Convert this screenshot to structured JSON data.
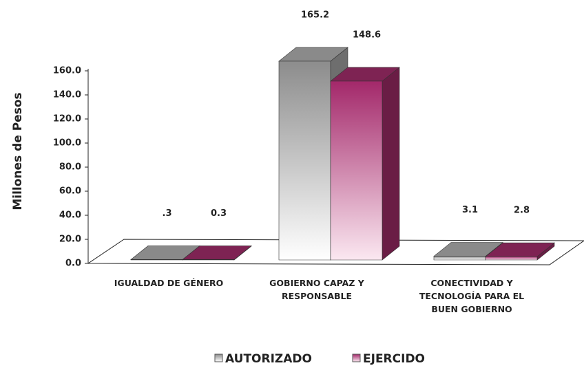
{
  "chart_data": {
    "type": "bar3d",
    "y_axis_label": "Millones de Pesos",
    "categories": [
      "IGUALDAD DE GÉNERO",
      "GOBIERNO CAPAZ Y RESPONSABLE",
      "CONECTIVIDAD Y TECNOLOGÍA PARA EL BUEN GOBIERNO"
    ],
    "series": [
      {
        "name": "AUTORIZADO",
        "color": "#8c8c8c",
        "values": [
          0.3,
          165.2,
          3.1
        ],
        "value_labels": [
          ".3",
          "165.2",
          "3.1"
        ]
      },
      {
        "name": "EJERCIDO",
        "color": "#a3286a",
        "values": [
          0.3,
          148.6,
          2.8
        ],
        "value_labels": [
          "0.3",
          "148.6",
          "2.8"
        ]
      }
    ],
    "ylim": [
      0,
      160
    ],
    "yticks": [
      {
        "value": 0,
        "label": "0.0"
      },
      {
        "value": 20,
        "label": "20.0"
      },
      {
        "value": 40,
        "label": "40.0"
      },
      {
        "value": 60,
        "label": "60.0"
      },
      {
        "value": 80,
        "label": "80.0"
      },
      {
        "value": 100,
        "label": "100.0"
      },
      {
        "value": 120,
        "label": "120.0"
      },
      {
        "value": 140,
        "label": "140.0"
      },
      {
        "value": 160,
        "label": "160.0"
      }
    ],
    "legend": "bottom"
  }
}
